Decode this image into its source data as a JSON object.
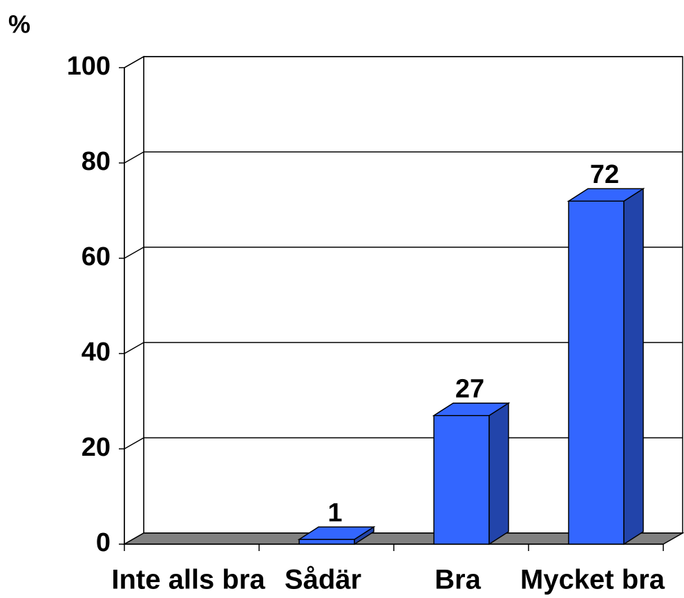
{
  "chart_data": {
    "type": "bar3d",
    "y_label": "%",
    "categories": [
      "Inte alls bra",
      "Sådär",
      "Bra",
      "Mycket bra"
    ],
    "values": [
      null,
      1,
      27,
      72
    ],
    "color": "#3366ff",
    "ylim": [
      0,
      100
    ],
    "yticks": [
      0,
      20,
      40,
      60,
      80,
      100
    ],
    "grid": true
  }
}
